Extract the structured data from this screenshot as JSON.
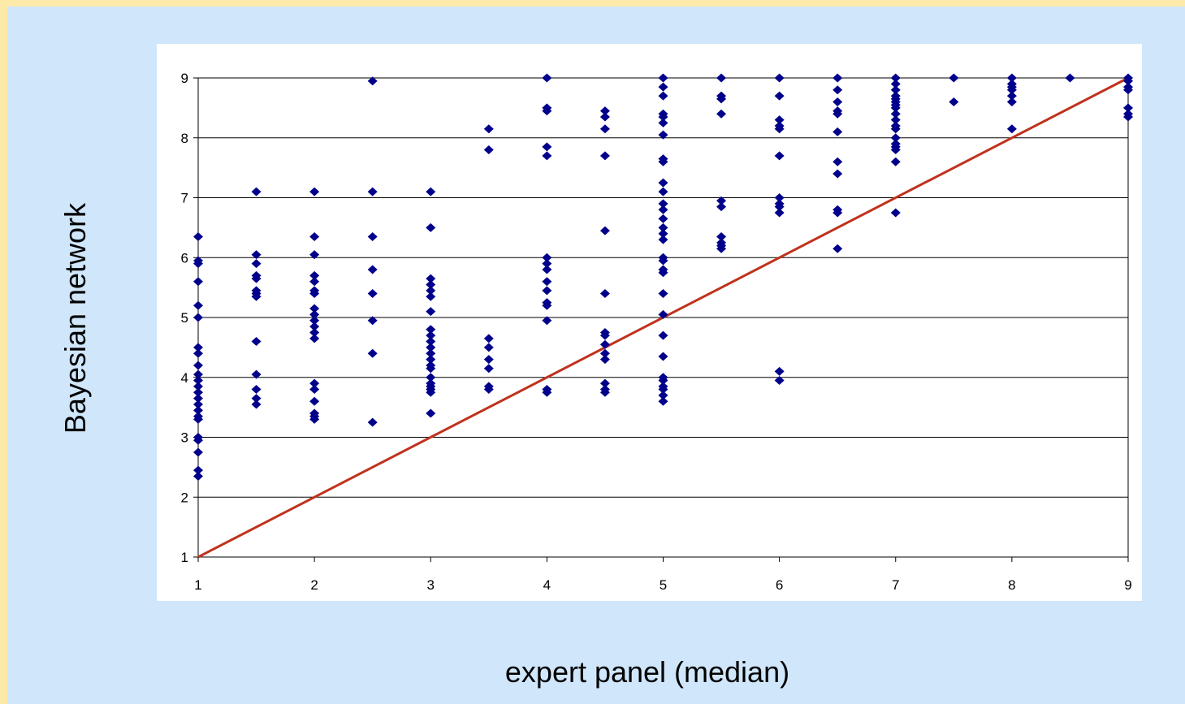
{
  "chart_data": {
    "type": "scatter",
    "xlabel": "expert panel (median)",
    "ylabel": "Bayesian network",
    "xlim": [
      1,
      9
    ],
    "ylim": [
      1,
      9
    ],
    "x_ticks": [
      "1",
      "2",
      "3",
      "4",
      "5",
      "6",
      "7",
      "8",
      "9"
    ],
    "y_ticks": [
      "1",
      "2",
      "3",
      "4",
      "5",
      "6",
      "7",
      "8",
      "9"
    ],
    "grid": "horizontal",
    "legend": "none",
    "colors": {
      "points": "#00008b",
      "line": "#c0321c",
      "grid": "#000000"
    },
    "reference_line": {
      "type": "identity",
      "x": [
        1,
        9
      ],
      "y": [
        1,
        9
      ]
    },
    "series": [
      {
        "points": [
          [
            1,
            6.35
          ],
          [
            1,
            5.95
          ],
          [
            1,
            5.9
          ],
          [
            1,
            5.6
          ],
          [
            1,
            5.2
          ],
          [
            1,
            5.0
          ],
          [
            1,
            4.5
          ],
          [
            1,
            4.4
          ],
          [
            1,
            4.2
          ],
          [
            1,
            4.05
          ],
          [
            1,
            3.95
          ],
          [
            1,
            3.85
          ],
          [
            1,
            3.75
          ],
          [
            1,
            3.65
          ],
          [
            1,
            3.55
          ],
          [
            1,
            3.45
          ],
          [
            1,
            3.35
          ],
          [
            1,
            3.3
          ],
          [
            1,
            3.0
          ],
          [
            1,
            2.95
          ],
          [
            1,
            2.75
          ],
          [
            1,
            2.45
          ],
          [
            1,
            2.35
          ],
          [
            1.5,
            7.1
          ],
          [
            1.5,
            6.05
          ],
          [
            1.5,
            5.9
          ],
          [
            1.5,
            5.7
          ],
          [
            1.5,
            5.65
          ],
          [
            1.5,
            5.45
          ],
          [
            1.5,
            5.4
          ],
          [
            1.5,
            5.35
          ],
          [
            1.5,
            4.6
          ],
          [
            1.5,
            4.05
          ],
          [
            1.5,
            3.8
          ],
          [
            1.5,
            3.65
          ],
          [
            1.5,
            3.55
          ],
          [
            2,
            7.1
          ],
          [
            2,
            6.35
          ],
          [
            2,
            6.05
          ],
          [
            2,
            5.7
          ],
          [
            2,
            5.6
          ],
          [
            2,
            5.45
          ],
          [
            2,
            5.4
          ],
          [
            2,
            5.15
          ],
          [
            2,
            5.05
          ],
          [
            2,
            4.95
          ],
          [
            2,
            4.85
          ],
          [
            2,
            4.75
          ],
          [
            2,
            4.65
          ],
          [
            2,
            3.9
          ],
          [
            2,
            3.8
          ],
          [
            2,
            3.6
          ],
          [
            2,
            3.4
          ],
          [
            2,
            3.35
          ],
          [
            2,
            3.3
          ],
          [
            2.5,
            8.95
          ],
          [
            2.5,
            7.1
          ],
          [
            2.5,
            6.35
          ],
          [
            2.5,
            5.8
          ],
          [
            2.5,
            5.4
          ],
          [
            2.5,
            4.95
          ],
          [
            2.5,
            4.4
          ],
          [
            2.5,
            3.25
          ],
          [
            3,
            7.1
          ],
          [
            3,
            6.5
          ],
          [
            3,
            5.65
          ],
          [
            3,
            5.55
          ],
          [
            3,
            5.45
          ],
          [
            3,
            5.35
          ],
          [
            3,
            5.1
          ],
          [
            3,
            4.8
          ],
          [
            3,
            4.7
          ],
          [
            3,
            4.6
          ],
          [
            3,
            4.5
          ],
          [
            3,
            4.4
          ],
          [
            3,
            4.3
          ],
          [
            3,
            4.2
          ],
          [
            3,
            4.15
          ],
          [
            3,
            4.0
          ],
          [
            3,
            3.9
          ],
          [
            3,
            3.85
          ],
          [
            3,
            3.8
          ],
          [
            3,
            3.75
          ],
          [
            3,
            3.4
          ],
          [
            3.5,
            8.15
          ],
          [
            3.5,
            7.8
          ],
          [
            3.5,
            4.65
          ],
          [
            3.5,
            4.5
          ],
          [
            3.5,
            4.3
          ],
          [
            3.5,
            4.15
          ],
          [
            3.5,
            3.85
          ],
          [
            3.5,
            3.8
          ],
          [
            4,
            9.0
          ],
          [
            4,
            8.5
          ],
          [
            4,
            8.45
          ],
          [
            4,
            7.85
          ],
          [
            4,
            7.7
          ],
          [
            4,
            6.0
          ],
          [
            4,
            5.9
          ],
          [
            4,
            5.8
          ],
          [
            4,
            5.6
          ],
          [
            4,
            5.45
          ],
          [
            4,
            5.25
          ],
          [
            4,
            5.2
          ],
          [
            4,
            4.95
          ],
          [
            4,
            3.8
          ],
          [
            4,
            3.75
          ],
          [
            4.5,
            8.45
          ],
          [
            4.5,
            8.35
          ],
          [
            4.5,
            8.15
          ],
          [
            4.5,
            7.7
          ],
          [
            4.5,
            6.45
          ],
          [
            4.5,
            5.4
          ],
          [
            4.5,
            4.75
          ],
          [
            4.5,
            4.7
          ],
          [
            4.5,
            4.55
          ],
          [
            4.5,
            4.4
          ],
          [
            4.5,
            4.3
          ],
          [
            4.5,
            3.9
          ],
          [
            4.5,
            3.8
          ],
          [
            4.5,
            3.75
          ],
          [
            5,
            9.0
          ],
          [
            5,
            8.85
          ],
          [
            5,
            8.7
          ],
          [
            5,
            8.4
          ],
          [
            5,
            8.35
          ],
          [
            5,
            8.25
          ],
          [
            5,
            8.05
          ],
          [
            5,
            7.65
          ],
          [
            5,
            7.6
          ],
          [
            5,
            7.25
          ],
          [
            5,
            7.1
          ],
          [
            5,
            6.9
          ],
          [
            5,
            6.8
          ],
          [
            5,
            6.65
          ],
          [
            5,
            6.5
          ],
          [
            5,
            6.4
          ],
          [
            5,
            6.3
          ],
          [
            5,
            6.0
          ],
          [
            5,
            5.95
          ],
          [
            5,
            5.8
          ],
          [
            5,
            5.75
          ],
          [
            5,
            5.4
          ],
          [
            5,
            5.05
          ],
          [
            5,
            4.7
          ],
          [
            5,
            4.35
          ],
          [
            5,
            4.0
          ],
          [
            5,
            3.95
          ],
          [
            5,
            3.85
          ],
          [
            5,
            3.8
          ],
          [
            5,
            3.7
          ],
          [
            5,
            3.6
          ],
          [
            5.5,
            9.0
          ],
          [
            5.5,
            8.7
          ],
          [
            5.5,
            8.65
          ],
          [
            5.5,
            8.4
          ],
          [
            5.5,
            6.95
          ],
          [
            5.5,
            6.85
          ],
          [
            5.5,
            6.35
          ],
          [
            5.5,
            6.25
          ],
          [
            5.5,
            6.2
          ],
          [
            5.5,
            6.15
          ],
          [
            6,
            9.0
          ],
          [
            6,
            8.7
          ],
          [
            6,
            8.3
          ],
          [
            6,
            8.2
          ],
          [
            6,
            8.15
          ],
          [
            6,
            7.7
          ],
          [
            6,
            7.0
          ],
          [
            6,
            6.9
          ],
          [
            6,
            6.85
          ],
          [
            6,
            6.75
          ],
          [
            6,
            4.1
          ],
          [
            6,
            3.95
          ],
          [
            6.5,
            9.0
          ],
          [
            6.5,
            8.8
          ],
          [
            6.5,
            8.6
          ],
          [
            6.5,
            8.45
          ],
          [
            6.5,
            8.4
          ],
          [
            6.5,
            8.1
          ],
          [
            6.5,
            7.6
          ],
          [
            6.5,
            7.4
          ],
          [
            6.5,
            6.8
          ],
          [
            6.5,
            6.75
          ],
          [
            6.5,
            6.15
          ],
          [
            7,
            9.0
          ],
          [
            7,
            8.9
          ],
          [
            7,
            8.8
          ],
          [
            7,
            8.7
          ],
          [
            7,
            8.65
          ],
          [
            7,
            8.6
          ],
          [
            7,
            8.55
          ],
          [
            7,
            8.5
          ],
          [
            7,
            8.4
          ],
          [
            7,
            8.3
          ],
          [
            7,
            8.2
          ],
          [
            7,
            8.15
          ],
          [
            7,
            8.0
          ],
          [
            7,
            7.9
          ],
          [
            7,
            7.85
          ],
          [
            7,
            7.8
          ],
          [
            7,
            7.6
          ],
          [
            7,
            6.75
          ],
          [
            7.5,
            9.0
          ],
          [
            7.5,
            8.6
          ],
          [
            8,
            9.0
          ],
          [
            8,
            8.9
          ],
          [
            8,
            8.85
          ],
          [
            8,
            8.8
          ],
          [
            8,
            8.7
          ],
          [
            8,
            8.6
          ],
          [
            8,
            8.15
          ],
          [
            8.5,
            9.0
          ],
          [
            9,
            9.0
          ],
          [
            9,
            8.95
          ],
          [
            9,
            8.85
          ],
          [
            9,
            8.8
          ],
          [
            9,
            8.5
          ],
          [
            9,
            8.4
          ],
          [
            9,
            8.35
          ]
        ]
      }
    ]
  }
}
